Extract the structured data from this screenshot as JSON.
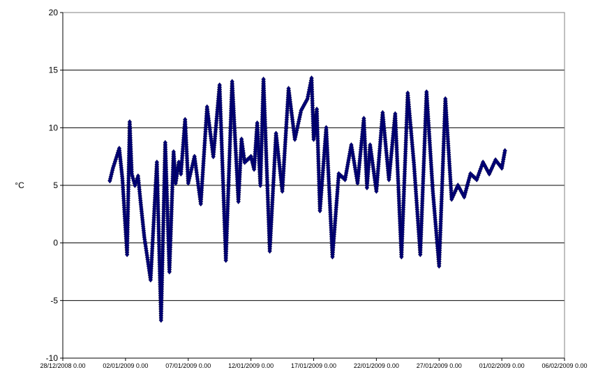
{
  "chart_data": {
    "type": "line",
    "title": "",
    "xlabel": "",
    "ylabel": "°C",
    "ylim": [
      -10,
      20
    ],
    "xlim": [
      "28/12/2008 0.00",
      "06/02/2009 0.00"
    ],
    "yticks": [
      -10,
      -5,
      0,
      5,
      10,
      15,
      20
    ],
    "xticks": [
      "28/12/2008 0.00",
      "02/01/2009 0.00",
      "07/01/2009 0.00",
      "12/01/2009 0.00",
      "17/01/2009 0.00",
      "22/01/2009 0.00",
      "27/01/2009 0.00",
      "01/02/2009 0.00",
      "06/02/2009 0.00"
    ],
    "grid": "horizontal",
    "legend": "none",
    "marker": "diamond",
    "series_color": "#000080",
    "series": [
      {
        "x": [
          "31/12/2008 18.00",
          "01/01/2009 0.00",
          "01/01/2009 12.00",
          "01/01/2009 18.00",
          "02/01/2009 3.00",
          "02/01/2009 8.00",
          "02/01/2009 12.00",
          "02/01/2009 18.00",
          "03/01/2009 0.00",
          "03/01/2009 5.00",
          "03/01/2009 12.00",
          "04/01/2009 0.00",
          "04/01/2009 12.00",
          "04/01/2009 20.00",
          "05/01/2009 4.00",
          "05/01/2009 12.00",
          "05/01/2009 20.00",
          "06/01/2009 0.00",
          "06/01/2009 6.00",
          "06/01/2009 10.00",
          "06/01/2009 18.00",
          "07/01/2009 0.00",
          "07/01/2009 12.00",
          "08/01/2009 0.00",
          "08/01/2009 12.00",
          "09/01/2009 0.00",
          "09/01/2009 12.00",
          "10/01/2009 0.00",
          "10/01/2009 12.00",
          "11/01/2009 0.00",
          "11/01/2009 6.00",
          "11/01/2009 12.00",
          "12/01/2009 0.00",
          "12/01/2009 6.00",
          "12/01/2009 12.00",
          "12/01/2009 18.00",
          "13/01/2009 0.00",
          "13/01/2009 12.00",
          "14/01/2009 0.00",
          "14/01/2009 12.00",
          "15/01/2009 0.00",
          "15/01/2009 12.00",
          "16/01/2009 0.00",
          "16/01/2009 12.00",
          "16/01/2009 20.00",
          "17/01/2009 0.00",
          "17/01/2009 6.00",
          "17/01/2009 12.00",
          "18/01/2009 0.00",
          "18/01/2009 12.00",
          "19/01/2009 0.00",
          "19/01/2009 12.00",
          "20/01/2009 0.00",
          "20/01/2009 12.00",
          "21/01/2009 0.00",
          "21/01/2009 6.00",
          "21/01/2009 12.00",
          "22/01/2009 0.00",
          "22/01/2009 12.00",
          "23/01/2009 0.00",
          "23/01/2009 12.00",
          "24/01/2009 0.00",
          "24/01/2009 12.00",
          "25/01/2009 0.00",
          "25/01/2009 12.00",
          "26/01/2009 0.00",
          "26/01/2009 12.00",
          "27/01/2009 0.00",
          "27/01/2009 12.00",
          "28/01/2009 0.00",
          "28/01/2009 12.00",
          "29/01/2009 0.00",
          "29/01/2009 12.00",
          "30/01/2009 0.00",
          "30/01/2009 12.00",
          "31/01/2009 0.00",
          "31/01/2009 12.00",
          "01/02/2009 0.00",
          "01/02/2009 6.00"
        ],
        "y": [
          5.4,
          6.5,
          8.2,
          5.6,
          -1.0,
          10.5,
          6.0,
          5.0,
          5.8,
          3.5,
          0.5,
          -3.2,
          7.0,
          -6.7,
          8.7,
          -2.5,
          7.9,
          5.2,
          7.0,
          6.0,
          10.7,
          5.2,
          7.5,
          3.4,
          11.8,
          7.5,
          13.7,
          -1.5,
          14.0,
          3.6,
          9.0,
          7.0,
          7.5,
          6.4,
          10.4,
          5.0,
          14.2,
          -0.7,
          9.5,
          4.5,
          13.4,
          9.0,
          11.5,
          12.5,
          14.3,
          9.0,
          11.6,
          2.8,
          10.0,
          -1.2,
          6.0,
          5.5,
          8.5,
          5.2,
          10.8,
          4.8,
          8.5,
          4.5,
          11.3,
          5.5,
          11.2,
          -1.2,
          13.0,
          6.8,
          -1.0,
          13.1,
          4.5,
          -2.0,
          12.5,
          3.8,
          5.0,
          4.0,
          6.0,
          5.5,
          7.0,
          6.0,
          7.2,
          6.5,
          8.0
        ]
      }
    ]
  }
}
